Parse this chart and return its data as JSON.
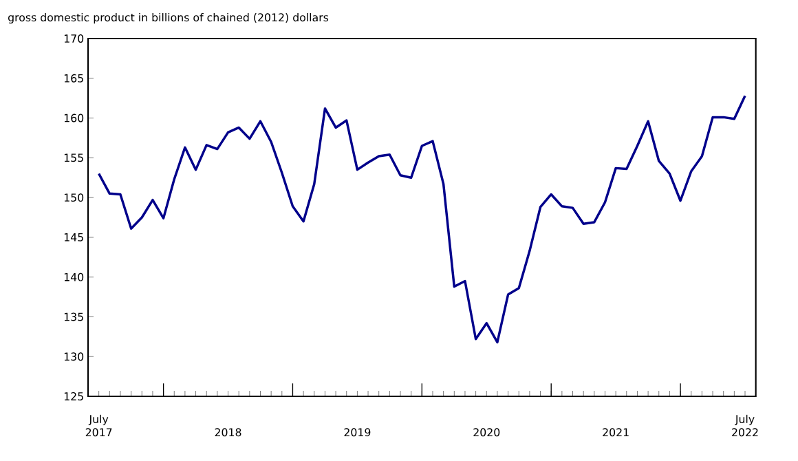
{
  "chart_data": {
    "type": "line",
    "ylabel": "gross domestic product in billions of chained (2012) dollars",
    "x": [
      "2017-07",
      "2017-08",
      "2017-09",
      "2017-10",
      "2017-11",
      "2017-12",
      "2018-01",
      "2018-02",
      "2018-03",
      "2018-04",
      "2018-05",
      "2018-06",
      "2018-07",
      "2018-08",
      "2018-09",
      "2018-10",
      "2018-11",
      "2018-12",
      "2019-01",
      "2019-02",
      "2019-03",
      "2019-04",
      "2019-05",
      "2019-06",
      "2019-07",
      "2019-08",
      "2019-09",
      "2019-10",
      "2019-11",
      "2019-12",
      "2020-01",
      "2020-02",
      "2020-03",
      "2020-04",
      "2020-05",
      "2020-06",
      "2020-07",
      "2020-08",
      "2020-09",
      "2020-10",
      "2020-11",
      "2020-12",
      "2021-01",
      "2021-02",
      "2021-03",
      "2021-04",
      "2021-05",
      "2021-06",
      "2021-07",
      "2021-08",
      "2021-09",
      "2021-10",
      "2021-11",
      "2021-12",
      "2022-01",
      "2022-02",
      "2022-03",
      "2022-04",
      "2022-05",
      "2022-06",
      "2022-07"
    ],
    "series": [
      {
        "color": "#00008b",
        "values": [
          153,
          150.5,
          150.4,
          146.1,
          147.5,
          149.7,
          147.4,
          152.3,
          156.3,
          153.5,
          156.6,
          156.1,
          158.2,
          158.8,
          157.4,
          159.6,
          157,
          153.1,
          148.9,
          147,
          151.7,
          161.2,
          158.8,
          159.7,
          153.5,
          154.4,
          155.2,
          155.4,
          152.8,
          152.5,
          156.5,
          157.1,
          151.7,
          138.8,
          139.5,
          132.2,
          134.2,
          131.8,
          137.8,
          138.6,
          143.3,
          148.8,
          150.4,
          148.9,
          148.7,
          146.7,
          146.9,
          149.4,
          153.7,
          153.6,
          156.5,
          159.6,
          154.6,
          153,
          149.6,
          153.3,
          155.2,
          160.1,
          160.1,
          159.9,
          162.8
        ]
      }
    ],
    "xlim": [
      "2017-06",
      "2022-08"
    ],
    "xticks": [
      {
        "value": "2017-07",
        "label": "July 2017"
      },
      {
        "value": "2018-01",
        "label": null
      },
      {
        "value": "2018-07",
        "label": "2018"
      },
      {
        "value": "2019-01",
        "label": null
      },
      {
        "value": "2019-07",
        "label": "2019"
      },
      {
        "value": "2020-01",
        "label": null
      },
      {
        "value": "2020-07",
        "label": "2020"
      },
      {
        "value": "2021-01",
        "label": null
      },
      {
        "value": "2021-07",
        "label": "2021"
      },
      {
        "value": "2022-01",
        "label": null
      },
      {
        "value": "2022-07",
        "label": "July 2022"
      }
    ],
    "ylim": [
      125,
      170
    ],
    "yticks": [
      125,
      130,
      135,
      140,
      145,
      150,
      155,
      160,
      165,
      170
    ],
    "grid": false,
    "marker": "none",
    "line_style": "solid"
  }
}
